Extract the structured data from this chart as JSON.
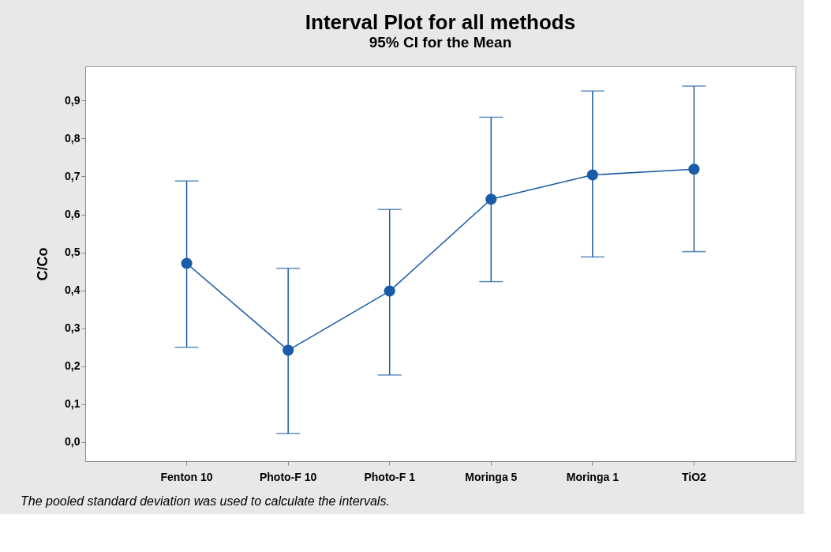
{
  "chart_data": {
    "type": "line",
    "title": "Interval Plot for all methods",
    "subtitle": "95% CI for the Mean",
    "ylabel": "C/Co",
    "categories": [
      "Fenton 10",
      "Photo-F 10",
      "Photo-F 1",
      "Moringa 5",
      "Moringa 1",
      "TiO2"
    ],
    "series": [
      {
        "color": "#1a5ca8",
        "values": [
          0.471,
          0.242,
          0.398,
          0.64,
          0.704,
          0.719
        ],
        "errors": [
          [
            0.25,
            0.688
          ],
          [
            0.023,
            0.458
          ],
          [
            0.177,
            0.613
          ],
          [
            0.423,
            0.856
          ],
          [
            0.488,
            0.925
          ],
          [
            0.502,
            0.938
          ]
        ]
      }
    ],
    "ylim": [
      -0.05,
      0.99
    ],
    "yticks": [
      {
        "value": 0,
        "label": "0,0"
      },
      {
        "value": 0.1,
        "label": "0,1"
      },
      {
        "value": 0.2,
        "label": "0,2"
      },
      {
        "value": 0.3,
        "label": "0,3"
      },
      {
        "value": 0.4,
        "label": "0,4"
      },
      {
        "value": 0.5,
        "label": "0,5"
      },
      {
        "value": 0.6,
        "label": "0,6"
      },
      {
        "value": 0.7,
        "label": "0,7"
      },
      {
        "value": 0.8,
        "label": "0,8"
      },
      {
        "value": 0.9,
        "label": "0,9"
      }
    ],
    "marker": "circle",
    "grid": false,
    "annotations": [
      "The pooled standard deviation was used to calculate the intervals."
    ]
  }
}
